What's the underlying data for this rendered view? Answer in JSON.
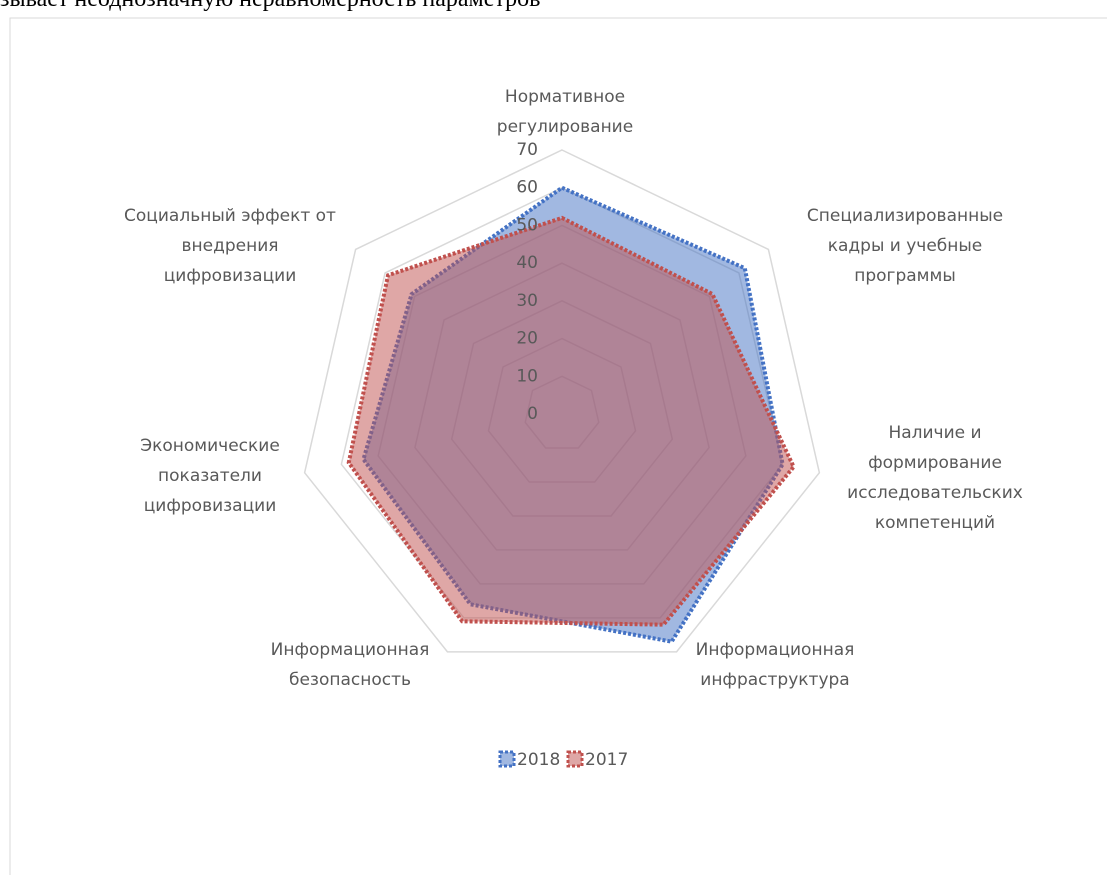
{
  "document": {
    "text": "зывает неоднозначную неравномерность параметров"
  },
  "chart_data": {
    "type": "radar",
    "categories": [
      [
        "Нормативное",
        "регулирование"
      ],
      [
        "Специализированные",
        "кадры и учебные",
        "программы"
      ],
      [
        "Наличие и",
        "формирование",
        "исследовательских",
        "компетенций"
      ],
      [
        "Информационная",
        "инфраструктура"
      ],
      [
        "Информационная",
        "безопасность"
      ],
      [
        "Экономические",
        "показатели",
        "цифровизации"
      ],
      [
        "Социальный эффект от",
        "внедрения",
        "цифровизации"
      ]
    ],
    "series": [
      {
        "name": "2018",
        "color": "#4472c4",
        "values": [
          60,
          62,
          60,
          67,
          56,
          54,
          51
        ]
      },
      {
        "name": "2017",
        "color": "#c0504d",
        "values": [
          52,
          51,
          63,
          62,
          61,
          58,
          59
        ]
      }
    ],
    "ylim": [
      0,
      70
    ],
    "yticks": [
      0,
      10,
      20,
      30,
      40,
      50,
      60,
      70
    ],
    "grid": true,
    "legend": "bottom"
  }
}
